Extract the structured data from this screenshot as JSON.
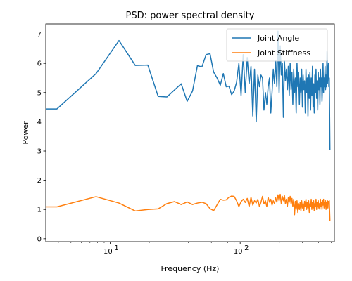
{
  "chart_data": {
    "type": "line",
    "title": "PSD: power spectral density",
    "xlabel": "Frequency (Hz)",
    "ylabel": "Power",
    "xscale": "log",
    "xlim": [
      3.2,
      530
    ],
    "ylim": [
      -0.1,
      7.35
    ],
    "yticks": [
      0,
      1,
      2,
      3,
      4,
      5,
      6,
      7
    ],
    "xticks": [
      {
        "value": 10,
        "base": "10",
        "exp": "1"
      },
      {
        "value": 100,
        "base": "10",
        "exp": "2"
      }
    ],
    "grid": false,
    "legend_position": "top-right",
    "series": [
      {
        "name": "Joint Angle",
        "color": "#1f77b4",
        "points": [
          [
            3.2,
            4.44
          ],
          [
            3.9,
            4.44
          ],
          [
            7.8,
            5.65
          ],
          [
            11.7,
            6.78
          ],
          [
            15.6,
            5.93
          ],
          [
            19.5,
            5.94
          ],
          [
            23.4,
            4.87
          ],
          [
            27.3,
            4.85
          ],
          [
            35.2,
            5.3
          ],
          [
            39.1,
            4.7
          ],
          [
            43,
            5.05
          ],
          [
            46.9,
            5.92
          ],
          [
            50.8,
            5.88
          ],
          [
            54.7,
            6.3
          ],
          [
            58.6,
            6.33
          ],
          [
            62.5,
            5.7
          ],
          [
            66.4,
            5.5
          ],
          [
            70.3,
            5.25
          ],
          [
            74.2,
            5.65
          ],
          [
            78.1,
            5.2
          ],
          [
            82,
            5.22
          ],
          [
            85.9,
            4.93
          ],
          [
            89.8,
            5.05
          ],
          [
            93.8,
            5.35
          ],
          [
            97.7,
            6.0
          ],
          [
            101.6,
            4.9
          ],
          [
            105.5,
            6.3
          ],
          [
            109.4,
            5.0
          ],
          [
            113.3,
            6.2
          ],
          [
            117.2,
            5.3
          ],
          [
            121.1,
            5.9
          ],
          [
            125,
            4.2
          ],
          [
            128.9,
            5.8
          ],
          [
            132.8,
            4.0
          ],
          [
            136.7,
            5.6
          ],
          [
            140.6,
            5.2
          ],
          [
            144.5,
            5.6
          ],
          [
            148.4,
            5.5
          ],
          [
            152.3,
            4.4
          ],
          [
            156.3,
            5.0
          ],
          [
            160.2,
            4.6
          ],
          [
            164.1,
            5.2
          ],
          [
            168,
            5.5
          ],
          [
            171.9,
            4.3
          ],
          [
            175.8,
            5.0
          ],
          [
            179.7,
            5.8
          ],
          [
            183.6,
            5.3
          ],
          [
            187.5,
            6.1
          ],
          [
            191.4,
            5.2
          ],
          [
            195.3,
            7.1
          ],
          [
            199.2,
            5.0
          ],
          [
            203.1,
            6.6
          ],
          [
            207,
            5.6
          ],
          [
            210.9,
            6.0
          ],
          [
            214.8,
            4.15
          ],
          [
            218.8,
            6.1
          ],
          [
            222.7,
            5.4
          ],
          [
            226.6,
            5.8
          ],
          [
            230.5,
            5.1
          ],
          [
            234.4,
            5.9
          ],
          [
            238.3,
            4.9
          ],
          [
            242.2,
            6.0
          ],
          [
            246.1,
            5.1
          ],
          [
            250,
            5.7
          ],
          [
            253.9,
            4.6
          ],
          [
            257.8,
            5.8
          ],
          [
            261.7,
            5.0
          ],
          [
            265.6,
            5.5
          ],
          [
            269.5,
            4.3
          ],
          [
            273.4,
            6.0
          ],
          [
            277.3,
            5.2
          ],
          [
            281.3,
            5.7
          ],
          [
            285.2,
            4.6
          ],
          [
            289.1,
            5.5
          ],
          [
            293,
            5.0
          ],
          [
            296.9,
            5.8
          ],
          [
            300.8,
            4.5
          ],
          [
            304.7,
            5.6
          ],
          [
            308.6,
            5.1
          ],
          [
            312.5,
            5.4
          ],
          [
            316.4,
            4.3
          ],
          [
            320.3,
            5.8
          ],
          [
            324.2,
            5.0
          ],
          [
            328.1,
            5.5
          ],
          [
            332,
            4.2
          ],
          [
            335.9,
            5.6
          ],
          [
            339.8,
            4.8
          ],
          [
            343.8,
            5.7
          ],
          [
            347.7,
            4.4
          ],
          [
            351.6,
            5.5
          ],
          [
            355.5,
            4.9
          ],
          [
            359.4,
            5.9
          ],
          [
            363.3,
            4.5
          ],
          [
            367.2,
            5.3
          ],
          [
            371.1,
            4.3
          ],
          [
            375,
            5.6
          ],
          [
            378.9,
            5.0
          ],
          [
            382.8,
            5.8
          ],
          [
            386.7,
            4.8
          ],
          [
            390.6,
            5.4
          ],
          [
            394.5,
            4.4
          ],
          [
            398.4,
            5.7
          ],
          [
            402.3,
            5.1
          ],
          [
            406.3,
            5.5
          ],
          [
            410.2,
            4.6
          ],
          [
            414.1,
            5.8
          ],
          [
            418,
            5.2
          ],
          [
            421.9,
            5.5
          ],
          [
            425.8,
            4.7
          ],
          [
            429.7,
            5.2
          ],
          [
            433.6,
            6.0
          ],
          [
            437.5,
            5.0
          ],
          [
            441.4,
            5.5
          ],
          [
            445.3,
            5.2
          ],
          [
            449.2,
            5.9
          ],
          [
            453.1,
            5.1
          ],
          [
            457,
            5.6
          ],
          [
            460.9,
            5.2
          ],
          [
            464.8,
            6.4
          ],
          [
            468.8,
            5.3
          ],
          [
            472.7,
            5.7
          ],
          [
            476.6,
            6.0
          ],
          [
            480.5,
            5.2
          ],
          [
            484.4,
            5.5
          ],
          [
            490,
            3.03
          ]
        ]
      },
      {
        "name": "Joint Stiffness",
        "color": "#ff7f0e",
        "points": [
          [
            3.2,
            1.09
          ],
          [
            3.9,
            1.09
          ],
          [
            7.8,
            1.44
          ],
          [
            11.7,
            1.22
          ],
          [
            15.6,
            0.95
          ],
          [
            19.5,
            1.0
          ],
          [
            23.4,
            1.02
          ],
          [
            27.3,
            1.2
          ],
          [
            31.2,
            1.27
          ],
          [
            35.2,
            1.17
          ],
          [
            39.1,
            1.26
          ],
          [
            43,
            1.17
          ],
          [
            46.9,
            1.22
          ],
          [
            50.8,
            1.25
          ],
          [
            54.7,
            1.2
          ],
          [
            58.6,
            1.03
          ],
          [
            62.5,
            0.96
          ],
          [
            66.4,
            1.16
          ],
          [
            70.3,
            1.35
          ],
          [
            74.2,
            1.32
          ],
          [
            78.1,
            1.33
          ],
          [
            82,
            1.42
          ],
          [
            85.9,
            1.46
          ],
          [
            89.8,
            1.45
          ],
          [
            93.8,
            1.3
          ],
          [
            97.7,
            1.1
          ],
          [
            101.6,
            1.27
          ],
          [
            105.5,
            1.35
          ],
          [
            109.4,
            1.24
          ],
          [
            113.3,
            1.38
          ],
          [
            117.2,
            1.1
          ],
          [
            121.1,
            1.42
          ],
          [
            125,
            1.15
          ],
          [
            128.9,
            1.3
          ],
          [
            132.8,
            1.22
          ],
          [
            136.7,
            1.35
          ],
          [
            140.6,
            1.1
          ],
          [
            144.5,
            1.25
          ],
          [
            148.4,
            1.45
          ],
          [
            152.3,
            1.2
          ],
          [
            156.3,
            1.3
          ],
          [
            160.2,
            1.1
          ],
          [
            164.1,
            1.42
          ],
          [
            168,
            1.25
          ],
          [
            171.9,
            1.35
          ],
          [
            175.8,
            1.15
          ],
          [
            179.7,
            1.3
          ],
          [
            183.6,
            1.2
          ],
          [
            187.5,
            1.4
          ],
          [
            191.4,
            1.25
          ],
          [
            195.3,
            1.5
          ],
          [
            199.2,
            1.3
          ],
          [
            203.1,
            1.52
          ],
          [
            207,
            1.2
          ],
          [
            210.9,
            1.45
          ],
          [
            214.8,
            1.3
          ],
          [
            218.8,
            1.48
          ],
          [
            222.7,
            1.2
          ],
          [
            226.6,
            1.35
          ],
          [
            230.5,
            1.1
          ],
          [
            234.4,
            1.4
          ],
          [
            238.3,
            1.25
          ],
          [
            242.2,
            1.45
          ],
          [
            246.1,
            1.2
          ],
          [
            250,
            1.38
          ],
          [
            253.9,
            1.1
          ],
          [
            257.8,
            1.35
          ],
          [
            261.7,
            0.82
          ],
          [
            265.6,
            1.28
          ],
          [
            269.5,
            1.0
          ],
          [
            273.4,
            1.3
          ],
          [
            277.3,
            0.9
          ],
          [
            281.3,
            1.2
          ],
          [
            285.2,
            1.0
          ],
          [
            289.1,
            1.25
          ],
          [
            293,
            0.95
          ],
          [
            296.9,
            1.3
          ],
          [
            300.8,
            1.05
          ],
          [
            304.7,
            1.2
          ],
          [
            308.6,
            0.95
          ],
          [
            312.5,
            1.28
          ],
          [
            316.4,
            1.1
          ],
          [
            320.3,
            1.35
          ],
          [
            324.2,
            1.0
          ],
          [
            328.1,
            1.25
          ],
          [
            332,
            1.05
          ],
          [
            335.9,
            1.3
          ],
          [
            339.8,
            0.9
          ],
          [
            343.8,
            1.2
          ],
          [
            347.7,
            1.1
          ],
          [
            351.6,
            1.35
          ],
          [
            355.5,
            1.0
          ],
          [
            359.4,
            1.25
          ],
          [
            363.3,
            1.05
          ],
          [
            367.2,
            1.3
          ],
          [
            371.1,
            0.95
          ],
          [
            375,
            1.2
          ],
          [
            378.9,
            1.1
          ],
          [
            382.8,
            1.35
          ],
          [
            386.7,
            1.0
          ],
          [
            390.6,
            1.25
          ],
          [
            394.5,
            1.1
          ],
          [
            398.4,
            1.3
          ],
          [
            402.3,
            1.05
          ],
          [
            406.3,
            1.2
          ],
          [
            410.2,
            1.0
          ],
          [
            414.1,
            1.35
          ],
          [
            418,
            1.1
          ],
          [
            421.9,
            1.25
          ],
          [
            425.8,
            1.0
          ],
          [
            429.7,
            1.3
          ],
          [
            433.6,
            1.15
          ],
          [
            437.5,
            1.35
          ],
          [
            441.4,
            1.05
          ],
          [
            445.3,
            1.25
          ],
          [
            449.2,
            1.1
          ],
          [
            453.1,
            1.3
          ],
          [
            457,
            1.0
          ],
          [
            460.9,
            1.25
          ],
          [
            464.8,
            1.15
          ],
          [
            468.8,
            1.3
          ],
          [
            472.7,
            1.05
          ],
          [
            476.6,
            1.28
          ],
          [
            480.5,
            1.2
          ],
          [
            484.4,
            1.3
          ],
          [
            490,
            0.6
          ]
        ]
      }
    ]
  }
}
